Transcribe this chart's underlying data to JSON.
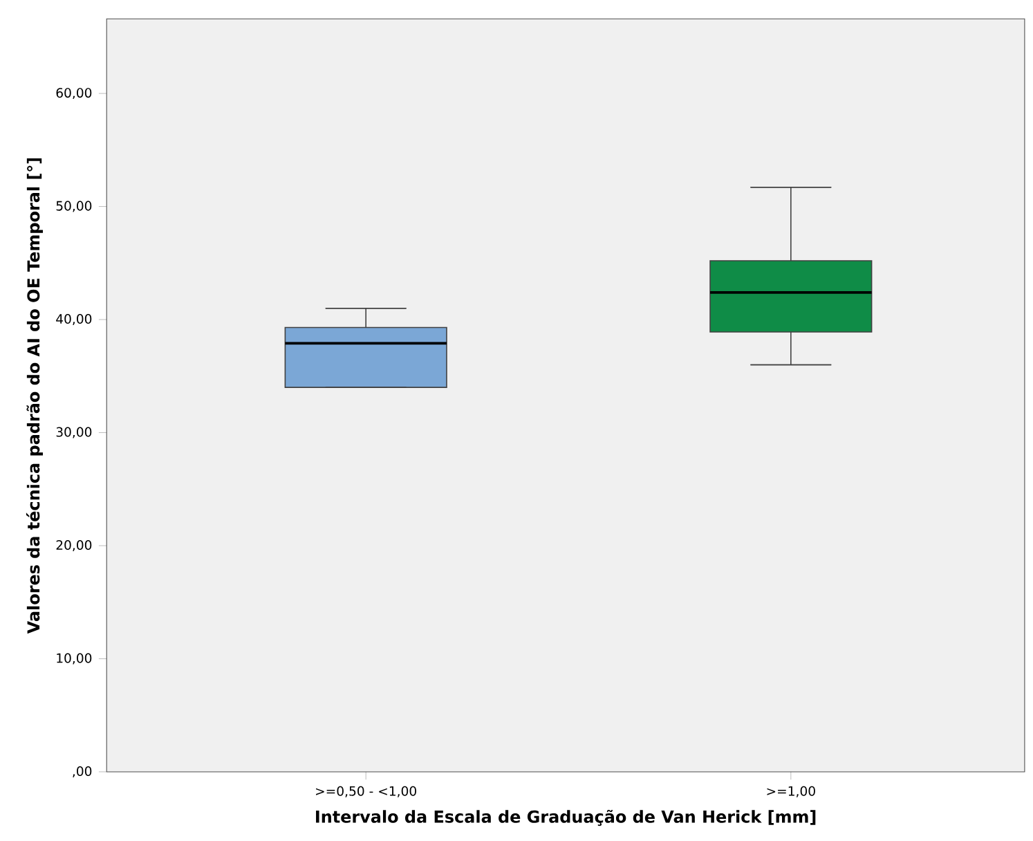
{
  "chart_data": {
    "type": "box",
    "xlabel": "Intervalo da Escala de Graduação de Van Herick [mm]",
    "ylabel": "Valores da técnica padrão do AI do OE Temporal [°]",
    "categories": [
      ">=0,50 - <1,00",
      ">=1,00"
    ],
    "colors": [
      "#7ba7d6",
      "#0f8c47"
    ],
    "boxes": [
      {
        "low": 34.0,
        "q1": 34.0,
        "median": 37.9,
        "q3": 39.3,
        "high": 41.0
      },
      {
        "low": 36.0,
        "q1": 38.9,
        "median": 42.4,
        "q3": 45.2,
        "high": 51.7
      }
    ],
    "ylim": [
      0,
      66.6
    ],
    "yticks": [
      {
        "value": 0,
        "label": ",00"
      },
      {
        "value": 10,
        "label": "10,00"
      },
      {
        "value": 20,
        "label": "20,00"
      },
      {
        "value": 30,
        "label": "30,00"
      },
      {
        "value": 40,
        "label": "40,00"
      },
      {
        "value": 50,
        "label": "50,00"
      },
      {
        "value": 60,
        "label": "60,00"
      }
    ]
  }
}
